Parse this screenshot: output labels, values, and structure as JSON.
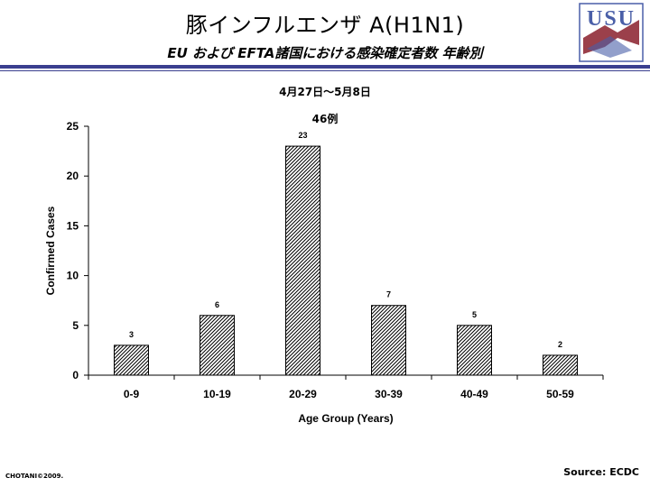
{
  "header": {
    "title": "豚インフルエンザ A(H1N1)",
    "subtitle": "EU および EFTA諸国における感染確定者数 年齢別",
    "logo_text": "USU"
  },
  "date_range": "4月27日～5月8日",
  "footer": {
    "copyright": "CHOTANI©2009.",
    "source": "Source: ECDC"
  },
  "colors": {
    "accent": "#3a3f8f",
    "logo_blue": "#4a5fa8",
    "logo_red": "#8a1f2b"
  },
  "chart_data": {
    "type": "bar",
    "title": "",
    "annotation": "46例",
    "categories": [
      "0-9",
      "10-19",
      "20-29",
      "30-39",
      "40-49",
      "50-59"
    ],
    "values": [
      3,
      6,
      23,
      7,
      5,
      2
    ],
    "xlabel": "Age Group (Years)",
    "ylabel": "Confirmed Cases",
    "ylim": [
      0,
      25
    ],
    "yticks": [
      0,
      5,
      10,
      15,
      20,
      25
    ],
    "bar_fill": "diagonal-hatch",
    "data_labels": true,
    "grid": false,
    "legend": "none"
  }
}
